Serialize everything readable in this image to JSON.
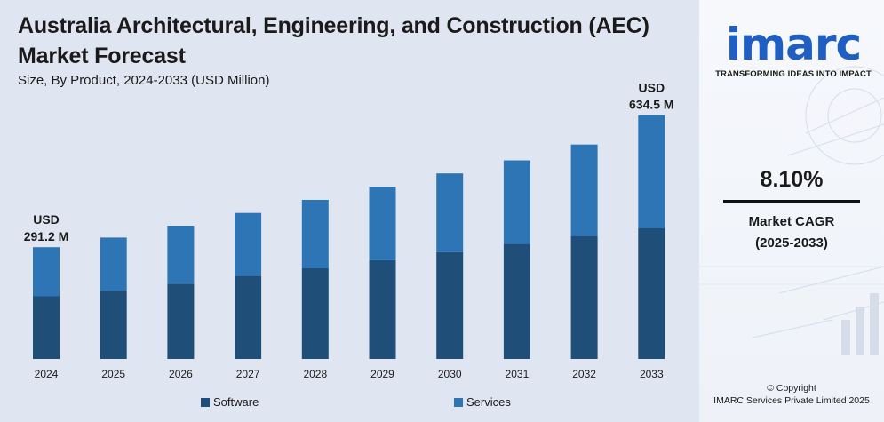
{
  "header": {
    "title": "Australia Architectural, Engineering, and Construction (AEC) Market Forecast",
    "subtitle": "Size, By Product, 2024-2033 (USD Million)"
  },
  "chart_data": {
    "type": "bar",
    "stacked": true,
    "categories": [
      "2024",
      "2025",
      "2026",
      "2027",
      "2028",
      "2029",
      "2030",
      "2031",
      "2032",
      "2033"
    ],
    "series": [
      {
        "name": "Software",
        "color": "#1f4e79",
        "values": [
          163,
          178,
          196,
          216,
          236,
          257,
          278,
          300,
          320,
          340
        ]
      },
      {
        "name": "Services",
        "color": "#2e75b6",
        "values": [
          128,
          138,
          151,
          164,
          178,
          191,
          205,
          217,
          238,
          294.5
        ]
      }
    ],
    "totals_annotations": [
      {
        "category": "2024",
        "line1": "USD",
        "line2": "291.2 M"
      },
      {
        "category": "2033",
        "line1": "USD",
        "line2": "634.5 M"
      }
    ],
    "ylim": [
      0,
      680
    ],
    "grid": false,
    "legend_position": "bottom"
  },
  "brand": {
    "logo_text": "imarc",
    "tagline": "TRANSFORMING IDEAS INTO IMPACT",
    "accent_color": "#1f5fc4"
  },
  "cagr": {
    "value": "8.10%",
    "label_line1": "Market CAGR",
    "label_line2": "(2025-2033)"
  },
  "footer": {
    "copyright_line1": "© Copyright",
    "copyright_line2": "IMARC Services Private Limited 2025"
  }
}
